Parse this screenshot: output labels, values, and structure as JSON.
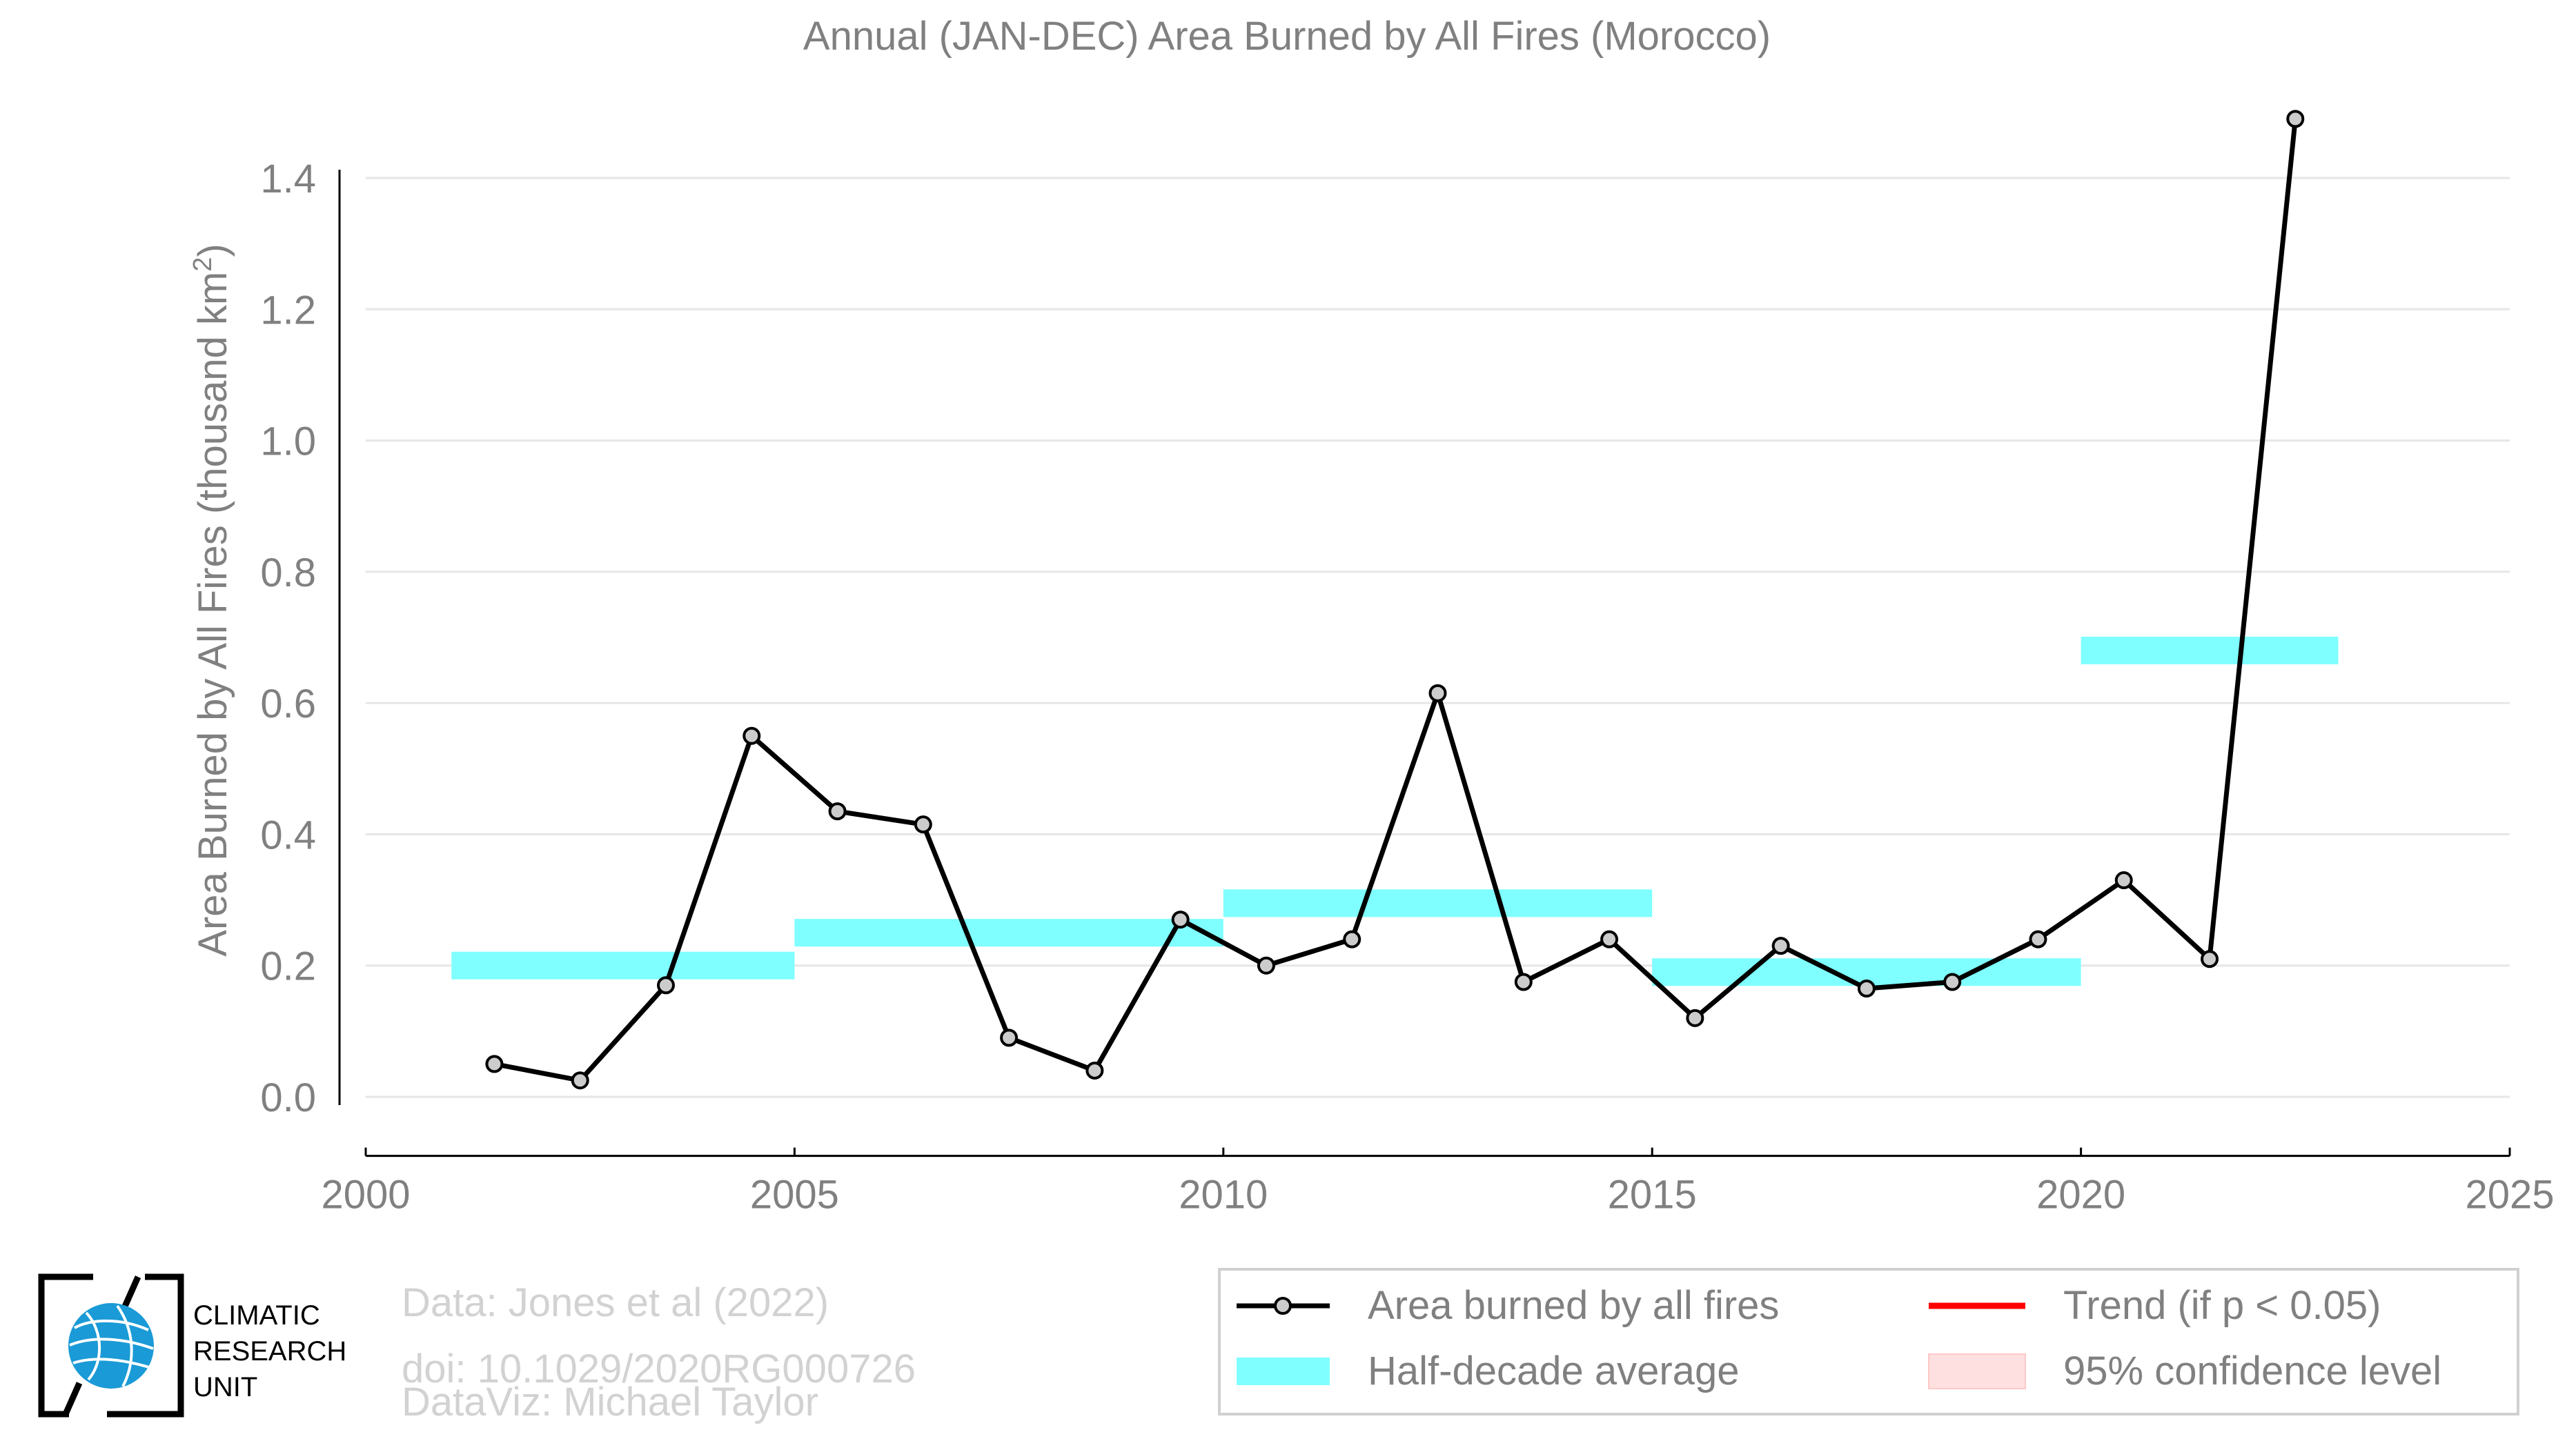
{
  "chart_data": {
    "type": "line",
    "title": "Annual (JAN-DEC) Area Burned by All Fires (Morocco)",
    "xlabel": "",
    "ylabel_main": "Area Burned by All Fires (thousand km",
    "ylabel_sup": "2",
    "ylabel_end": ")",
    "xlim": [
      2000,
      2025
    ],
    "ylim": [
      -0.09,
      1.4
    ],
    "x_ticks": [
      2000,
      2005,
      2010,
      2015,
      2020,
      2025
    ],
    "x_tick_labels": [
      "2000",
      "2005",
      "2010",
      "2015",
      "2020",
      "2025"
    ],
    "y_ticks": [
      0.0,
      0.2,
      0.4,
      0.6,
      0.8,
      1.0,
      1.2,
      1.4
    ],
    "y_tick_labels": [
      "0.0",
      "0.2",
      "0.4",
      "0.6",
      "0.8",
      "1.0",
      "1.2",
      "1.4"
    ],
    "grid": true,
    "series": [
      {
        "name": "Area burned by all fires",
        "color": "#000000",
        "marker_fill": "#cccccc",
        "x": [
          2001.5,
          2002.5,
          2003.5,
          2004.5,
          2005.5,
          2006.5,
          2007.5,
          2008.5,
          2009.5,
          2010.5,
          2011.5,
          2012.5,
          2013.5,
          2014.5,
          2015.5,
          2016.5,
          2017.5,
          2018.5,
          2019.5,
          2020.5,
          2021.5,
          2022.5
        ],
        "y": [
          0.05,
          0.025,
          0.17,
          0.55,
          0.435,
          0.415,
          0.09,
          0.04,
          0.27,
          0.2,
          0.24,
          0.615,
          0.175,
          0.24,
          0.12,
          0.23,
          0.165,
          0.175,
          0.24,
          0.33,
          0.21,
          1.49
        ]
      }
    ],
    "half_decade_average": {
      "name": "Half-decade average",
      "color": "#7fffff",
      "segments": [
        {
          "x0": 2001,
          "x1": 2005,
          "y": 0.2
        },
        {
          "x0": 2005,
          "x1": 2010,
          "y": 0.25
        },
        {
          "x0": 2010,
          "x1": 2015,
          "y": 0.295
        },
        {
          "x0": 2015,
          "x1": 2020,
          "y": 0.19
        },
        {
          "x0": 2020,
          "x1": 2023,
          "y": 0.68
        }
      ]
    },
    "legend": {
      "placement": "bottom-right",
      "entries": [
        {
          "label": "Area burned by all fires",
          "kind": "line-marker",
          "color": "#000000"
        },
        {
          "label": "Trend (if p < 0.05)",
          "kind": "line",
          "color": "#ff0000"
        },
        {
          "label": "Half-decade average",
          "kind": "band",
          "color": "#7fffff"
        },
        {
          "label": "95% confidence level",
          "kind": "patch",
          "color": "#ffe0e0"
        }
      ]
    }
  },
  "credits": {
    "lines": [
      "Data: Jones et al (2022)",
      "doi: 10.1029/2020RG000726",
      "DataViz: Michael Taylor"
    ]
  },
  "logo": {
    "lines": [
      "CLIMATIC",
      "RESEARCH",
      "UNIT"
    ],
    "icon": "globe-icon",
    "color": "#1a9ad6"
  }
}
